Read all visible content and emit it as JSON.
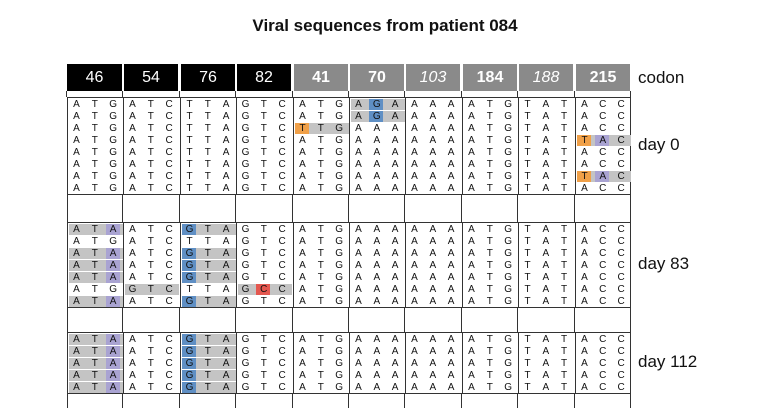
{
  "title": "Viral sequences from patient 084",
  "header": {
    "codons": [
      {
        "label": "46",
        "style": "black"
      },
      {
        "label": "54",
        "style": "black"
      },
      {
        "label": "76",
        "style": "black"
      },
      {
        "label": "82",
        "style": "black"
      },
      {
        "label": "41",
        "style": "gray"
      },
      {
        "label": "70",
        "style": "gray"
      },
      {
        "label": "103",
        "style": "gray-italic"
      },
      {
        "label": "184",
        "style": "gray"
      },
      {
        "label": "188",
        "style": "gray-italic"
      },
      {
        "label": "215",
        "style": "gray"
      }
    ],
    "row_label": "codon"
  },
  "colors": {
    "gray": "#c4c4c4",
    "purple": "#a9a3d2",
    "blue": "#5f8fc4",
    "orange": "#f0a048",
    "red": "#e4574f"
  },
  "blocks": [
    {
      "label": "day 0",
      "rows": [
        {
          "seq": [
            "ATG",
            "ATC",
            "TTA",
            "GTC",
            "ATG",
            "AGA",
            "AAA",
            "ATG",
            "TAT",
            "ACC"
          ],
          "hl": [
            {
              "c": 5,
              "p": 1,
              "col": "blue"
            },
            {
              "c": 5,
              "span": true
            }
          ]
        },
        {
          "seq": [
            "ATG",
            "ATC",
            "TTA",
            "GTC",
            "ATG",
            "AGA",
            "AAA",
            "ATG",
            "TAT",
            "ACC"
          ],
          "hl": [
            {
              "c": 5,
              "p": 1,
              "col": "blue"
            },
            {
              "c": 5,
              "span": true
            }
          ]
        },
        {
          "seq": [
            "ATG",
            "ATC",
            "TTA",
            "GTC",
            "TTG",
            "AAA",
            "AAA",
            "ATG",
            "TAT",
            "ACC"
          ],
          "hl": [
            {
              "c": 4,
              "p": 0,
              "col": "orange"
            },
            {
              "c": 4,
              "span": true
            }
          ]
        },
        {
          "seq": [
            "ATG",
            "ATC",
            "TTA",
            "GTC",
            "ATG",
            "AAA",
            "AAA",
            "ATG",
            "TAT",
            "TAC"
          ],
          "hl": [
            {
              "c": 9,
              "p": 0,
              "col": "orange"
            },
            {
              "c": 9,
              "p": 1,
              "col": "purple"
            },
            {
              "c": 9,
              "span": true
            }
          ]
        },
        {
          "seq": [
            "ATG",
            "ATC",
            "TTA",
            "GTC",
            "ATG",
            "AAA",
            "AAA",
            "ATG",
            "TAT",
            "ACC"
          ],
          "hl": []
        },
        {
          "seq": [
            "ATG",
            "ATC",
            "TTA",
            "GTC",
            "ATG",
            "AAA",
            "AAA",
            "ATG",
            "TAT",
            "ACC"
          ],
          "hl": []
        },
        {
          "seq": [
            "ATG",
            "ATC",
            "TTA",
            "GTC",
            "ATG",
            "AAA",
            "AAA",
            "ATG",
            "TAT",
            "TAC"
          ],
          "hl": [
            {
              "c": 9,
              "p": 0,
              "col": "orange"
            },
            {
              "c": 9,
              "p": 1,
              "col": "purple"
            },
            {
              "c": 9,
              "span": true
            }
          ]
        },
        {
          "seq": [
            "ATG",
            "ATC",
            "TTA",
            "GTC",
            "ATG",
            "AAA",
            "AAA",
            "ATG",
            "TAT",
            "ACC"
          ],
          "hl": []
        }
      ]
    },
    {
      "label": "day 83",
      "rows": [
        {
          "seq": [
            "ATA",
            "ATC",
            "GTA",
            "GTC",
            "ATG",
            "AAA",
            "AAA",
            "ATG",
            "TAT",
            "ACC"
          ],
          "hl": [
            {
              "c": 0,
              "span": true
            },
            {
              "c": 0,
              "p": 2,
              "col": "purple"
            },
            {
              "c": 2,
              "span": true
            },
            {
              "c": 2,
              "p": 0,
              "col": "blue"
            }
          ]
        },
        {
          "seq": [
            "ATG",
            "ATC",
            "TTA",
            "GTC",
            "ATG",
            "AAA",
            "AAA",
            "ATG",
            "TAT",
            "ACC"
          ],
          "hl": []
        },
        {
          "seq": [
            "ATA",
            "ATC",
            "GTA",
            "GTC",
            "ATG",
            "AAA",
            "AAA",
            "ATG",
            "TAT",
            "ACC"
          ],
          "hl": [
            {
              "c": 0,
              "span": true
            },
            {
              "c": 0,
              "p": 2,
              "col": "purple"
            },
            {
              "c": 2,
              "span": true
            },
            {
              "c": 2,
              "p": 0,
              "col": "blue"
            }
          ]
        },
        {
          "seq": [
            "ATA",
            "ATC",
            "GTA",
            "GTC",
            "ATG",
            "AAA",
            "AAA",
            "ATG",
            "TAT",
            "ACC"
          ],
          "hl": [
            {
              "c": 0,
              "span": true
            },
            {
              "c": 0,
              "p": 2,
              "col": "purple"
            },
            {
              "c": 2,
              "span": true
            },
            {
              "c": 2,
              "p": 0,
              "col": "blue"
            }
          ]
        },
        {
          "seq": [
            "ATA",
            "ATC",
            "GTA",
            "GTC",
            "ATG",
            "AAA",
            "AAA",
            "ATG",
            "TAT",
            "ACC"
          ],
          "hl": [
            {
              "c": 0,
              "span": true
            },
            {
              "c": 0,
              "p": 2,
              "col": "purple"
            },
            {
              "c": 2,
              "span": true
            },
            {
              "c": 2,
              "p": 0,
              "col": "blue"
            }
          ]
        },
        {
          "seq": [
            "ATG",
            "GTC",
            "TTA",
            "GCC",
            "ATG",
            "AAA",
            "AAA",
            "ATG",
            "TAT",
            "ACC"
          ],
          "hl": [
            {
              "c": 1,
              "span": true
            },
            {
              "c": 3,
              "span": true
            },
            {
              "c": 3,
              "p": 1,
              "col": "red"
            }
          ]
        },
        {
          "seq": [
            "ATA",
            "ATC",
            "GTA",
            "GTC",
            "ATG",
            "AAA",
            "AAA",
            "ATG",
            "TAT",
            "ACC"
          ],
          "hl": [
            {
              "c": 0,
              "span": true
            },
            {
              "c": 0,
              "p": 2,
              "col": "purple"
            },
            {
              "c": 2,
              "span": true
            },
            {
              "c": 2,
              "p": 0,
              "col": "blue"
            }
          ]
        }
      ]
    },
    {
      "label": "day 112",
      "rows": [
        {
          "seq": [
            "ATA",
            "ATC",
            "GTA",
            "GTC",
            "ATG",
            "AAA",
            "AAA",
            "ATG",
            "TAT",
            "ACC"
          ],
          "hl": [
            {
              "c": 0,
              "span": true
            },
            {
              "c": 0,
              "p": 2,
              "col": "purple"
            },
            {
              "c": 2,
              "span": true
            },
            {
              "c": 2,
              "p": 0,
              "col": "blue"
            }
          ]
        },
        {
          "seq": [
            "ATA",
            "ATC",
            "GTA",
            "GTC",
            "ATG",
            "AAA",
            "AAA",
            "ATG",
            "TAT",
            "ACC"
          ],
          "hl": [
            {
              "c": 0,
              "span": true
            },
            {
              "c": 0,
              "p": 2,
              "col": "purple"
            },
            {
              "c": 2,
              "span": true
            },
            {
              "c": 2,
              "p": 0,
              "col": "blue"
            }
          ]
        },
        {
          "seq": [
            "ATA",
            "ATC",
            "GTA",
            "GTC",
            "ATG",
            "AAA",
            "AAA",
            "ATG",
            "TAT",
            "ACC"
          ],
          "hl": [
            {
              "c": 0,
              "span": true
            },
            {
              "c": 0,
              "p": 2,
              "col": "purple"
            },
            {
              "c": 2,
              "span": true
            },
            {
              "c": 2,
              "p": 0,
              "col": "blue"
            }
          ]
        },
        {
          "seq": [
            "ATA",
            "ATC",
            "GTA",
            "GTC",
            "ATG",
            "AAA",
            "AAA",
            "ATG",
            "TAT",
            "ACC"
          ],
          "hl": [
            {
              "c": 0,
              "span": true
            },
            {
              "c": 0,
              "p": 2,
              "col": "purple"
            },
            {
              "c": 2,
              "span": true
            },
            {
              "c": 2,
              "p": 0,
              "col": "blue"
            }
          ]
        },
        {
          "seq": [
            "ATA",
            "ATC",
            "GTA",
            "GTC",
            "ATG",
            "AAA",
            "AAA",
            "ATG",
            "TAT",
            "ACC"
          ],
          "hl": [
            {
              "c": 0,
              "span": true
            },
            {
              "c": 0,
              "p": 2,
              "col": "purple"
            },
            {
              "c": 2,
              "span": true
            },
            {
              "c": 2,
              "p": 0,
              "col": "blue"
            }
          ]
        }
      ]
    }
  ]
}
